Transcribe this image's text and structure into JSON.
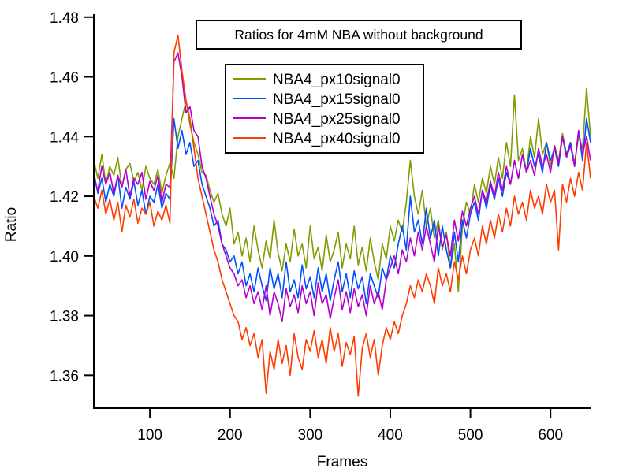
{
  "chart_data": {
    "type": "line",
    "title": "Ratios for 4mM NBA without background",
    "xlabel": "Frames",
    "ylabel": "Ratio",
    "xlim": [
      30,
      650
    ],
    "ylim": [
      1.349,
      1.481
    ],
    "xticks": [
      100,
      200,
      300,
      400,
      500,
      600
    ],
    "yticks": [
      "1.36",
      "1.38",
      "1.40",
      "1.42",
      "1.44",
      "1.46",
      "1.48"
    ],
    "grid": false,
    "legend_position": "top-center",
    "x": [
      30,
      35,
      40,
      45,
      50,
      55,
      60,
      65,
      70,
      75,
      80,
      85,
      90,
      95,
      100,
      105,
      110,
      115,
      120,
      125,
      130,
      135,
      140,
      145,
      150,
      155,
      160,
      165,
      170,
      175,
      180,
      185,
      190,
      195,
      200,
      205,
      210,
      215,
      220,
      225,
      230,
      235,
      240,
      245,
      250,
      255,
      260,
      265,
      270,
      275,
      280,
      285,
      290,
      295,
      300,
      305,
      310,
      315,
      320,
      325,
      330,
      335,
      340,
      345,
      350,
      355,
      360,
      365,
      370,
      375,
      380,
      385,
      390,
      395,
      400,
      405,
      410,
      415,
      420,
      425,
      430,
      435,
      440,
      445,
      450,
      455,
      460,
      465,
      470,
      475,
      480,
      485,
      490,
      495,
      500,
      505,
      510,
      515,
      520,
      525,
      530,
      535,
      540,
      545,
      550,
      555,
      560,
      565,
      570,
      575,
      580,
      585,
      590,
      595,
      600,
      605,
      610,
      615,
      620,
      625,
      630,
      635,
      640,
      645,
      650
    ],
    "series": [
      {
        "name": "NBA4_px10signal0",
        "color": "#7f9c00",
        "values": [
          1.432,
          1.426,
          1.434,
          1.424,
          1.43,
          1.427,
          1.433,
          1.423,
          1.429,
          1.431,
          1.425,
          1.428,
          1.422,
          1.43,
          1.426,
          1.424,
          1.429,
          1.421,
          1.427,
          1.431,
          1.426,
          1.44,
          1.446,
          1.452,
          1.444,
          1.438,
          1.434,
          1.428,
          1.427,
          1.422,
          1.418,
          1.421,
          1.414,
          1.41,
          1.416,
          1.404,
          1.408,
          1.4,
          1.406,
          1.398,
          1.41,
          1.402,
          1.396,
          1.405,
          1.399,
          1.412,
          1.401,
          1.395,
          1.404,
          1.398,
          1.409,
          1.4,
          1.404,
          1.396,
          1.41,
          1.399,
          1.403,
          1.395,
          1.407,
          1.398,
          1.402,
          1.408,
          1.396,
          1.404,
          1.399,
          1.41,
          1.397,
          1.403,
          1.395,
          1.406,
          1.398,
          1.392,
          1.404,
          1.399,
          1.41,
          1.405,
          1.412,
          1.408,
          1.418,
          1.432,
          1.42,
          1.414,
          1.422,
          1.41,
          1.416,
          1.406,
          1.412,
          1.402,
          1.408,
          1.396,
          1.404,
          1.388,
          1.41,
          1.418,
          1.414,
          1.424,
          1.418,
          1.426,
          1.421,
          1.43,
          1.424,
          1.433,
          1.426,
          1.438,
          1.43,
          1.454,
          1.432,
          1.436,
          1.428,
          1.44,
          1.433,
          1.446,
          1.434,
          1.438,
          1.43,
          1.437,
          1.432,
          1.441,
          1.434,
          1.438,
          1.431,
          1.44,
          1.436,
          1.456,
          1.44
        ]
      },
      {
        "name": "NBA4_px15signal0",
        "color": "#0050ff",
        "values": [
          1.428,
          1.421,
          1.426,
          1.418,
          1.424,
          1.42,
          1.427,
          1.416,
          1.423,
          1.419,
          1.425,
          1.417,
          1.422,
          1.414,
          1.42,
          1.418,
          1.424,
          1.416,
          1.421,
          1.419,
          1.446,
          1.436,
          1.442,
          1.434,
          1.438,
          1.43,
          1.432,
          1.424,
          1.42,
          1.416,
          1.41,
          1.412,
          1.404,
          1.402,
          1.398,
          1.4,
          1.394,
          1.398,
          1.39,
          1.394,
          1.388,
          1.396,
          1.39,
          1.385,
          1.396,
          1.389,
          1.394,
          1.386,
          1.398,
          1.388,
          1.392,
          1.386,
          1.397,
          1.389,
          1.393,
          1.386,
          1.396,
          1.388,
          1.394,
          1.385,
          1.392,
          1.398,
          1.388,
          1.394,
          1.386,
          1.395,
          1.389,
          1.393,
          1.384,
          1.394,
          1.39,
          1.386,
          1.396,
          1.392,
          1.4,
          1.396,
          1.404,
          1.41,
          1.402,
          1.42,
          1.408,
          1.412,
          1.404,
          1.416,
          1.406,
          1.412,
          1.4,
          1.41,
          1.402,
          1.396,
          1.408,
          1.398,
          1.412,
          1.406,
          1.414,
          1.418,
          1.412,
          1.422,
          1.416,
          1.424,
          1.419,
          1.426,
          1.42,
          1.428,
          1.424,
          1.432,
          1.426,
          1.434,
          1.428,
          1.436,
          1.43,
          1.434,
          1.428,
          1.438,
          1.432,
          1.436,
          1.43,
          1.44,
          1.434,
          1.438,
          1.43,
          1.442,
          1.432,
          1.446,
          1.438
        ]
      },
      {
        "name": "NBA4_px25signal0",
        "color": "#b400c8",
        "values": [
          1.426,
          1.422,
          1.43,
          1.424,
          1.428,
          1.421,
          1.427,
          1.423,
          1.429,
          1.42,
          1.426,
          1.424,
          1.428,
          1.419,
          1.425,
          1.422,
          1.427,
          1.418,
          1.424,
          1.423,
          1.465,
          1.468,
          1.46,
          1.448,
          1.45,
          1.442,
          1.44,
          1.43,
          1.426,
          1.42,
          1.414,
          1.41,
          1.404,
          1.4,
          1.396,
          1.394,
          1.39,
          1.392,
          1.386,
          1.39,
          1.384,
          1.388,
          1.382,
          1.39,
          1.38,
          1.388,
          1.384,
          1.378,
          1.389,
          1.383,
          1.387,
          1.381,
          1.39,
          1.384,
          1.388,
          1.38,
          1.391,
          1.384,
          1.387,
          1.379,
          1.386,
          1.392,
          1.382,
          1.388,
          1.381,
          1.389,
          1.383,
          1.387,
          1.38,
          1.39,
          1.384,
          1.388,
          1.382,
          1.392,
          1.396,
          1.4,
          1.394,
          1.402,
          1.398,
          1.406,
          1.4,
          1.408,
          1.402,
          1.41,
          1.404,
          1.398,
          1.41,
          1.403,
          1.407,
          1.4,
          1.412,
          1.405,
          1.415,
          1.41,
          1.416,
          1.42,
          1.414,
          1.422,
          1.418,
          1.425,
          1.42,
          1.428,
          1.422,
          1.43,
          1.424,
          1.432,
          1.426,
          1.434,
          1.428,
          1.432,
          1.427,
          1.436,
          1.43,
          1.434,
          1.428,
          1.437,
          1.431,
          1.44,
          1.433,
          1.437,
          1.43,
          1.442,
          1.434,
          1.44,
          1.432
        ]
      },
      {
        "name": "NBA4_px40signal0",
        "color": "#ff3c00",
        "values": [
          1.42,
          1.416,
          1.422,
          1.414,
          1.419,
          1.412,
          1.418,
          1.408,
          1.417,
          1.413,
          1.419,
          1.411,
          1.416,
          1.414,
          1.418,
          1.41,
          1.415,
          1.412,
          1.417,
          1.411,
          1.468,
          1.474,
          1.462,
          1.452,
          1.446,
          1.436,
          1.426,
          1.42,
          1.414,
          1.408,
          1.402,
          1.398,
          1.392,
          1.388,
          1.384,
          1.38,
          1.378,
          1.372,
          1.376,
          1.37,
          1.374,
          1.366,
          1.372,
          1.354,
          1.368,
          1.362,
          1.372,
          1.364,
          1.37,
          1.36,
          1.374,
          1.366,
          1.362,
          1.372,
          1.368,
          1.375,
          1.366,
          1.372,
          1.364,
          1.376,
          1.368,
          1.374,
          1.363,
          1.371,
          1.367,
          1.373,
          1.353,
          1.369,
          1.374,
          1.366,
          1.372,
          1.36,
          1.37,
          1.376,
          1.372,
          1.378,
          1.374,
          1.38,
          1.384,
          1.39,
          1.386,
          1.392,
          1.388,
          1.394,
          1.39,
          1.384,
          1.396,
          1.39,
          1.394,
          1.388,
          1.398,
          1.392,
          1.4,
          1.394,
          1.402,
          1.406,
          1.4,
          1.41,
          1.404,
          1.412,
          1.406,
          1.414,
          1.408,
          1.416,
          1.41,
          1.42,
          1.414,
          1.418,
          1.412,
          1.422,
          1.416,
          1.42,
          1.414,
          1.424,
          1.418,
          1.422,
          1.402,
          1.424,
          1.418,
          1.426,
          1.42,
          1.428,
          1.422,
          1.438,
          1.426
        ]
      }
    ]
  }
}
